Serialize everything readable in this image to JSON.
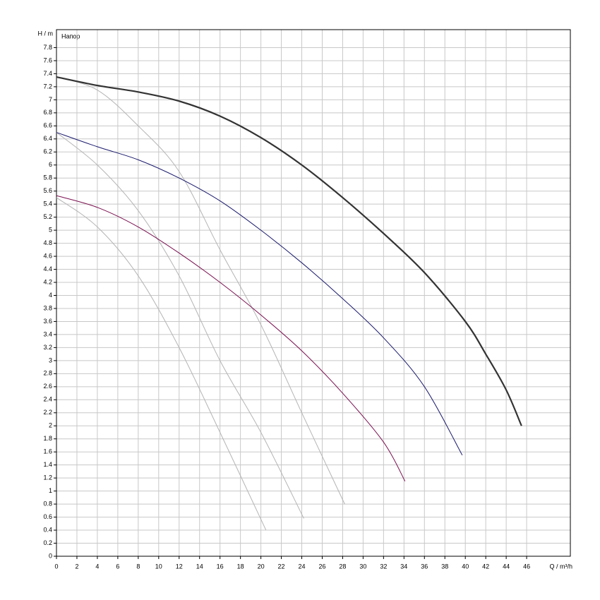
{
  "chart_data": {
    "type": "line",
    "annotation": "Напор",
    "y_label": "H / m",
    "x_label": "Q / m³/h",
    "xlim": [
      0,
      50
    ],
    "ylim": [
      0,
      8
    ],
    "xticks": [
      0,
      2,
      4,
      6,
      8,
      10,
      12,
      14,
      16,
      18,
      20,
      22,
      24,
      26,
      28,
      30,
      32,
      34,
      36,
      38,
      40,
      42,
      44,
      46
    ],
    "yticks": [
      0,
      0.2,
      0.4,
      0.6,
      0.8,
      1,
      1.2,
      1.4,
      1.6,
      1.8,
      2,
      2.2,
      2.4,
      2.6,
      2.8,
      3,
      3.2,
      3.4,
      3.6,
      3.8,
      4,
      4.2,
      4.4,
      4.6,
      4.8,
      5,
      5.2,
      5.4,
      5.6,
      5.8,
      6,
      6.2,
      6.4,
      6.6,
      6.8,
      7,
      7.2,
      7.4,
      7.6,
      7.8
    ],
    "grid": true,
    "series": [
      {
        "color": "#333333",
        "width": 2.2,
        "x": [
          0,
          4,
          8,
          12,
          16,
          20,
          24,
          28,
          32,
          36,
          40,
          42,
          44,
          45.5
        ],
        "values": [
          7.35,
          7.22,
          7.12,
          6.98,
          6.75,
          6.42,
          6.0,
          5.5,
          4.95,
          4.35,
          3.6,
          3.1,
          2.55,
          2.0
        ]
      },
      {
        "color": "#1a1a6e",
        "width": 1,
        "x": [
          0,
          4,
          8,
          12,
          16,
          20,
          24,
          28,
          32,
          36,
          39.7
        ],
        "values": [
          6.5,
          6.28,
          6.08,
          5.8,
          5.45,
          5.0,
          4.5,
          3.95,
          3.35,
          2.6,
          1.55
        ]
      },
      {
        "color": "#7a1050",
        "width": 1,
        "x": [
          0,
          4,
          8,
          12,
          16,
          20,
          24,
          28,
          32,
          34.1
        ],
        "values": [
          5.53,
          5.35,
          5.05,
          4.65,
          4.2,
          3.7,
          3.15,
          2.5,
          1.75,
          1.15
        ]
      },
      {
        "color": "#b4b4b4",
        "width": 1,
        "x": [
          0,
          4,
          8,
          12,
          16,
          20.5
        ],
        "values": [
          5.5,
          5.05,
          4.3,
          3.2,
          1.9,
          0.4
        ]
      },
      {
        "color": "#b4b4b4",
        "width": 1,
        "x": [
          0,
          4,
          8,
          12,
          16,
          20,
          24.2
        ],
        "values": [
          6.5,
          6.0,
          5.3,
          4.3,
          3.0,
          1.9,
          0.58
        ]
      },
      {
        "color": "#b4b4b4",
        "width": 1,
        "x": [
          0,
          4,
          8,
          12,
          16,
          20,
          24,
          28.2
        ],
        "values": [
          7.35,
          7.15,
          6.6,
          5.9,
          4.7,
          3.55,
          2.2,
          0.8
        ]
      }
    ]
  }
}
